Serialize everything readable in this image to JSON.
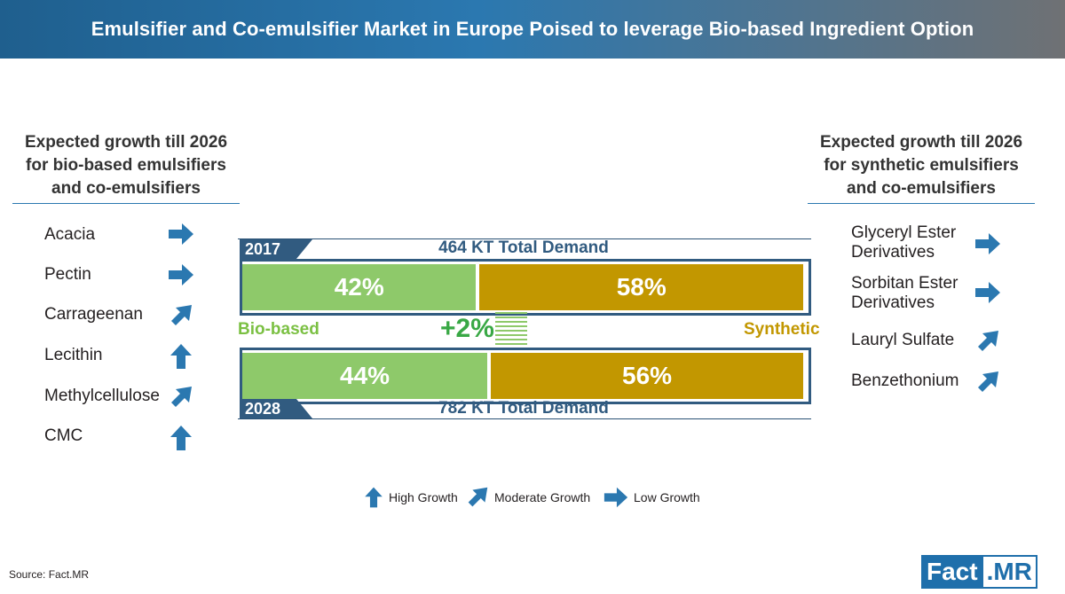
{
  "title": "Emulsifier and Co-emulsifier Market in Europe Poised to leverage Bio-based Ingredient Option",
  "left_panel": {
    "heading_lines": [
      "Expected growth till 2026",
      "for bio-based emulsifiers",
      "and co-emulsifiers"
    ],
    "items": [
      {
        "label": "Acacia",
        "growth": "Low Growth"
      },
      {
        "label": "Pectin",
        "growth": "Low Growth"
      },
      {
        "label": "Carrageenan",
        "growth": "Moderate Growth"
      },
      {
        "label": "Lecithin",
        "growth": "High Growth"
      },
      {
        "label": "Methylcellulose",
        "growth": "Moderate Growth"
      },
      {
        "label": "CMC",
        "growth": "High Growth"
      }
    ]
  },
  "right_panel": {
    "heading_lines": [
      "Expected growth till 2026",
      "for synthetic emulsifiers",
      "and co-emulsifiers"
    ],
    "items": [
      {
        "label_lines": [
          "Glyceryl Ester",
          "Derivatives"
        ],
        "growth": "Low Growth"
      },
      {
        "label_lines": [
          "Sorbitan Ester",
          "Derivatives"
        ],
        "growth": "Low Growth"
      },
      {
        "label_lines": [
          "Lauryl Sulfate"
        ],
        "growth": "Moderate Growth"
      },
      {
        "label_lines": [
          "Benzethonium"
        ],
        "growth": "Moderate Growth"
      }
    ]
  },
  "chart_data": {
    "type": "bar",
    "orientation": "horizontal-stacked-100",
    "categories": [
      "2017",
      "2028"
    ],
    "series": [
      {
        "name": "Bio-based",
        "values": [
          42,
          44
        ],
        "labels": [
          "42%",
          "44%"
        ],
        "color": "#8ec96a"
      },
      {
        "name": "Synthetic",
        "values": [
          58,
          56
        ],
        "labels": [
          "58%",
          "56%"
        ],
        "color": "#c29700"
      }
    ],
    "totals": [
      "464 KT Total Demand",
      "782 KT Total Demand"
    ],
    "change_label": "+2%",
    "xlim": [
      0,
      100
    ]
  },
  "legend": [
    {
      "label": "High Growth",
      "icon": "arrow-up-icon"
    },
    {
      "label": "Moderate Growth",
      "icon": "arrow-up-right-icon"
    },
    {
      "label": "Low Growth",
      "icon": "arrow-right-icon"
    }
  ],
  "colors": {
    "arrow": "#2b78b0",
    "bio": "#8ec96a",
    "synthetic": "#c29700",
    "frame": "#315b80",
    "delta": "#39a845"
  },
  "source": "Source: Fact.MR",
  "logo": {
    "part1": "Fact",
    "part2": ".MR"
  }
}
